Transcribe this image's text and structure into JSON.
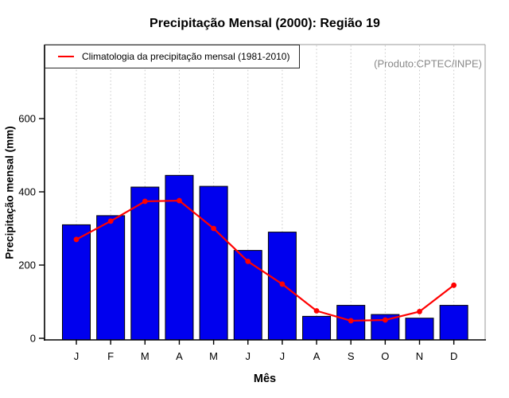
{
  "title": "Precipitação Mensal (2000): Região 19",
  "watermark": "(Produto:CPTEC/INPE)",
  "legend": {
    "label": "Climatologia da precipitação mensal (1981-2010)"
  },
  "chart_data": {
    "type": "bar",
    "title": "Precipitação Mensal (2000): Região 19",
    "xlabel": "Mês",
    "ylabel": "Precipitação mensal (mm)",
    "categories": [
      "J",
      "F",
      "M",
      "A",
      "M",
      "J",
      "J",
      "A",
      "S",
      "O",
      "N",
      "D"
    ],
    "series": [
      {
        "name": "Precipitação Mensal (2000)",
        "type": "bar",
        "color": "#0000EE",
        "values": [
          310,
          335,
          413,
          445,
          415,
          240,
          290,
          60,
          90,
          65,
          55,
          90
        ]
      },
      {
        "name": "Climatologia da precipitação mensal (1981-2010)",
        "type": "line",
        "color": "#FF0000",
        "values": [
          270,
          320,
          374,
          376,
          300,
          210,
          148,
          75,
          48,
          50,
          73,
          145
        ]
      }
    ],
    "ylim": [
      0,
      800
    ],
    "yticks": [
      0,
      200,
      400,
      600
    ],
    "grid": "vertical dotted gridline at each month",
    "legend_position": "top-left inside plot",
    "annotations": [
      "(Produto:CPTEC/INPE)"
    ]
  },
  "colors": {
    "bar_fill": "#0000EE",
    "bar_border": "#000000",
    "line": "#FF0000",
    "grid": "#C9C9C9",
    "axis": "#000000",
    "panel_border_light": "#999999",
    "watermark_text": "#888888",
    "background": "#FFFFFF"
  }
}
